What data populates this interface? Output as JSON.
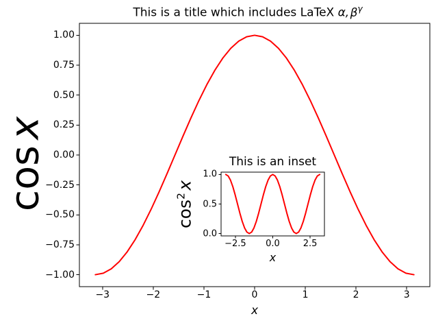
{
  "figure": {
    "title": {
      "prefix": "This is a title which includes LaTeX ",
      "alpha_comma": "α,",
      "beta": "β",
      "gamma_sup": "γ"
    },
    "main": {
      "ylabel_func": "cos",
      "ylabel_var": "x",
      "xlabel": "x"
    },
    "inset": {
      "title": "This is an inset",
      "ylabel_func": "cos",
      "ylabel_sup": "2",
      "ylabel_var": "x",
      "xlabel": "x"
    }
  },
  "colors": {
    "curve": "#ff0000",
    "spine": "#000000",
    "background": "#ffffff"
  },
  "chart_data": [
    {
      "id": "main",
      "type": "line",
      "title": "This is a title which includes LaTeX α,β^γ",
      "xlabel": "x",
      "ylabel": "cos x",
      "legend": null,
      "grid": false,
      "color": "#ff0000",
      "xlim": [
        -3.456,
        3.456
      ],
      "ylim": [
        -1.1,
        1.1
      ],
      "xticks": {
        "values": [
          -3,
          -2,
          -1,
          0,
          1,
          2,
          3
        ],
        "labels": [
          "−3",
          "−2",
          "−1",
          "0",
          "1",
          "2",
          "3"
        ]
      },
      "yticks": {
        "values": [
          1.0,
          0.75,
          0.5,
          0.25,
          0.0,
          -0.25,
          -0.5,
          -0.75,
          -1.0
        ],
        "labels": [
          "1.00",
          "0.75",
          "0.50",
          "0.25",
          "0.00",
          "−0.25",
          "−0.50",
          "−0.75",
          "−1.00"
        ]
      },
      "x": [
        -3.1416,
        -2.9845,
        -2.8274,
        -2.6704,
        -2.5133,
        -2.3562,
        -2.1991,
        -2.042,
        -1.885,
        -1.7279,
        -1.5708,
        -1.4137,
        -1.2566,
        -1.0996,
        -0.9425,
        -0.7854,
        -0.6283,
        -0.4712,
        -0.3142,
        -0.1571,
        0.0,
        0.1571,
        0.3142,
        0.4712,
        0.6283,
        0.7854,
        0.9425,
        1.0996,
        1.2566,
        1.4137,
        1.5708,
        1.7279,
        1.885,
        2.042,
        2.1991,
        2.3562,
        2.5133,
        2.6704,
        2.8274,
        2.9845,
        3.1416
      ],
      "y": [
        -1.0,
        -0.9877,
        -0.9511,
        -0.891,
        -0.809,
        -0.7071,
        -0.5878,
        -0.454,
        -0.309,
        -0.1564,
        0.0,
        0.1564,
        0.309,
        0.454,
        0.5878,
        0.7071,
        0.809,
        0.891,
        0.9511,
        0.9877,
        1.0,
        0.9877,
        0.9511,
        0.891,
        0.809,
        0.7071,
        0.5878,
        0.454,
        0.309,
        0.1564,
        0.0,
        -0.1564,
        -0.309,
        -0.454,
        -0.5878,
        -0.7071,
        -0.809,
        -0.891,
        -0.9511,
        -0.9877,
        -1.0
      ]
    },
    {
      "id": "inset",
      "type": "line",
      "title": "This is an inset",
      "xlabel": "x",
      "ylabel": "cos²x",
      "legend": null,
      "grid": false,
      "color": "#ff0000",
      "xlim": [
        -3.456,
        3.456
      ],
      "ylim": [
        -0.04,
        1.04
      ],
      "xticks": {
        "values": [
          -2.5,
          0.0,
          2.5
        ],
        "labels": [
          "−2.5",
          "0.0",
          "2.5"
        ]
      },
      "yticks": {
        "values": [
          0.0,
          0.5,
          1.0
        ],
        "labels": [
          "0.0",
          "0.5",
          "1.0"
        ]
      },
      "x": [
        -3.1416,
        -2.9845,
        -2.8274,
        -2.6704,
        -2.5133,
        -2.3562,
        -2.1991,
        -2.042,
        -1.885,
        -1.7279,
        -1.5708,
        -1.4137,
        -1.2566,
        -1.0996,
        -0.9425,
        -0.7854,
        -0.6283,
        -0.4712,
        -0.3142,
        -0.1571,
        0.0,
        0.1571,
        0.3142,
        0.4712,
        0.6283,
        0.7854,
        0.9425,
        1.0996,
        1.2566,
        1.4137,
        1.5708,
        1.7279,
        1.885,
        2.042,
        2.1991,
        2.3562,
        2.5133,
        2.6704,
        2.8274,
        2.9845,
        3.1416
      ],
      "y": [
        1.0,
        0.9755,
        0.9045,
        0.7939,
        0.6545,
        0.5,
        0.3455,
        0.2061,
        0.0955,
        0.0245,
        0.0,
        0.0245,
        0.0955,
        0.2061,
        0.3455,
        0.5,
        0.6545,
        0.7939,
        0.9045,
        0.9755,
        1.0,
        0.9755,
        0.9045,
        0.7939,
        0.6545,
        0.5,
        0.3455,
        0.2061,
        0.0955,
        0.0245,
        0.0,
        0.0245,
        0.0955,
        0.2061,
        0.3455,
        0.5,
        0.6545,
        0.7939,
        0.9045,
        0.9755,
        1.0
      ]
    }
  ]
}
